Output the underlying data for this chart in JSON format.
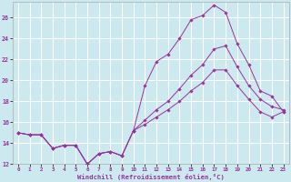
{
  "xlabel": "Windchill (Refroidissement éolien,°C)",
  "background_color": "#cce9f0",
  "grid_color": "#ffffff",
  "line_color": "#993399",
  "xlim": [
    -0.5,
    23.5
  ],
  "ylim": [
    12,
    27.5
  ],
  "xticks": [
    0,
    1,
    2,
    3,
    4,
    5,
    6,
    7,
    8,
    9,
    10,
    11,
    12,
    13,
    14,
    15,
    16,
    17,
    18,
    19,
    20,
    21,
    22,
    23
  ],
  "yticks": [
    12,
    14,
    16,
    18,
    20,
    22,
    24,
    26
  ],
  "series": {
    "line1_x": [
      0,
      1,
      2,
      3,
      4,
      5,
      6,
      7,
      8,
      9,
      10,
      11,
      12,
      13,
      14,
      15,
      16,
      17,
      18,
      19,
      20,
      21,
      22,
      23
    ],
    "line1_y": [
      15.0,
      14.8,
      14.8,
      13.5,
      13.8,
      13.8,
      12.0,
      13.0,
      13.2,
      12.8,
      15.2,
      19.5,
      21.8,
      22.5,
      24.0,
      25.8,
      26.2,
      27.2,
      26.5,
      23.5,
      21.5,
      19.0,
      18.5,
      17.0
    ],
    "line2_x": [
      0,
      1,
      2,
      3,
      4,
      5,
      6,
      7,
      8,
      9,
      10,
      11,
      12,
      13,
      14,
      15,
      16,
      17,
      18,
      19,
      20,
      21,
      22,
      23
    ],
    "line2_y": [
      15.0,
      14.8,
      14.8,
      13.5,
      13.8,
      13.8,
      12.0,
      13.0,
      13.2,
      12.8,
      15.2,
      16.2,
      17.2,
      18.0,
      19.2,
      20.5,
      21.5,
      23.0,
      23.3,
      21.3,
      19.5,
      18.2,
      17.5,
      17.2
    ],
    "line3_x": [
      0,
      1,
      2,
      3,
      4,
      5,
      6,
      7,
      8,
      9,
      10,
      11,
      12,
      13,
      14,
      15,
      16,
      17,
      18,
      19,
      20,
      21,
      22,
      23
    ],
    "line3_y": [
      15.0,
      14.8,
      14.8,
      13.5,
      13.8,
      13.8,
      12.0,
      13.0,
      13.2,
      12.8,
      15.2,
      15.8,
      16.5,
      17.2,
      18.0,
      19.0,
      19.8,
      21.0,
      21.0,
      19.5,
      18.2,
      17.0,
      16.5,
      17.0
    ]
  }
}
